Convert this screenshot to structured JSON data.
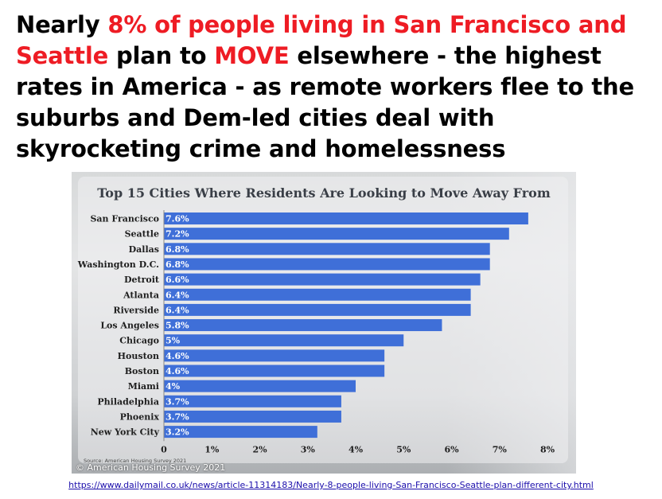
{
  "headline": {
    "part1": "Nearly ",
    "part2": "8% of people living in San Francisco and Seattle",
    "part3": " plan to ",
    "part4": "MOVE",
    "part5": " elsewhere - the highest rates in America - as remote workers flee to the suburbs and Dem-led cities deal with skyrocketing crime and homelessness"
  },
  "colors": {
    "bar": "#3f6fd8",
    "highlight": "#ee1c24",
    "axis": "#888888"
  },
  "chart_data": {
    "type": "bar",
    "orientation": "horizontal",
    "title": "Top 15 Cities Where Residents Are Looking to Move Away From",
    "categories": [
      "San Francisco",
      "Seattle",
      "Dallas",
      "Washington D.C.",
      "Detroit",
      "Atlanta",
      "Riverside",
      "Los Angeles",
      "Chicago",
      "Houston",
      "Boston",
      "Miami",
      "Philadelphia",
      "Phoenix",
      "New York City"
    ],
    "values": [
      7.6,
      7.2,
      6.8,
      6.8,
      6.6,
      6.4,
      6.4,
      5.8,
      5,
      4.6,
      4.6,
      4,
      3.7,
      3.7,
      3.2
    ],
    "value_labels": [
      "7.6%",
      "7.2%",
      "6.8%",
      "6.8%",
      "6.6%",
      "6.4%",
      "6.4%",
      "5.8%",
      "5%",
      "4.6%",
      "4.6%",
      "4%",
      "3.7%",
      "3.7%",
      "3.2%"
    ],
    "ticks": [
      "0",
      "1%",
      "2%",
      "3%",
      "4%",
      "5%",
      "6%",
      "7%",
      "8%"
    ],
    "xlim": [
      0,
      8
    ],
    "xlabel": "",
    "ylabel": "",
    "grid": false
  },
  "source": "Source: American Housing Survey 2021",
  "credit": "© American Housing Survey 2021",
  "url": "https://www.dailymail.co.uk/news/article-11314183/Nearly-8-people-living-San-Francisco-Seattle-plan-different-city.html"
}
